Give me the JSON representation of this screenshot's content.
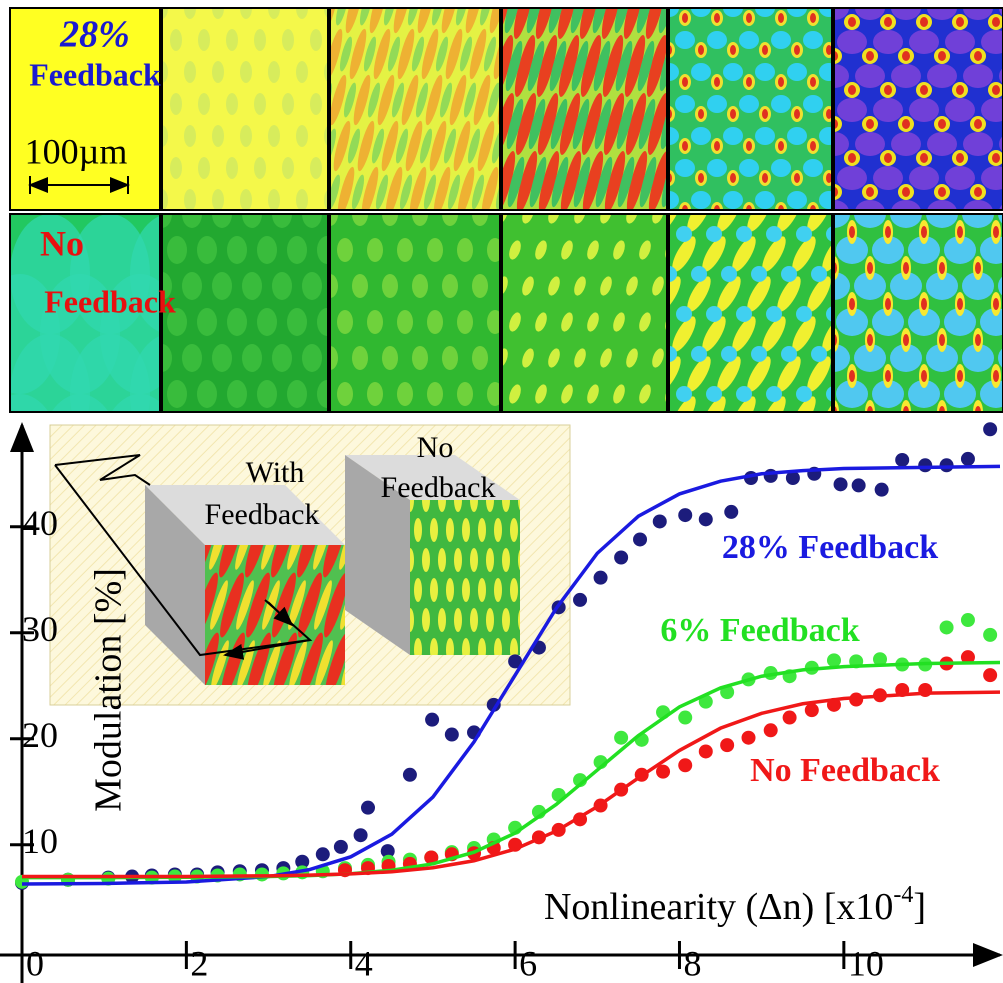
{
  "image_rows": [
    {
      "label": [
        "28%",
        "Feedback"
      ],
      "color": "#1a1ad0"
    },
    {
      "label": [
        "No",
        "Feedback"
      ],
      "color": "#e81010"
    }
  ],
  "scale_bar": "100µm",
  "inset": {
    "cubes": [
      [
        "With",
        "Feedback"
      ],
      [
        "No",
        "Feedback"
      ]
    ]
  },
  "chart_data": {
    "type": "scatter",
    "ylabel": "Modulation [%]",
    "xlabel": [
      "Nonlinearity (Δn) [x10",
      "-4",
      "]"
    ],
    "xlim": [
      0,
      11.9
    ],
    "ylim": [
      -0.4,
      49.6
    ],
    "xticks": [
      0,
      2,
      4,
      6,
      8,
      10
    ],
    "yticks": [
      10,
      20,
      30,
      40
    ],
    "series": [
      {
        "name": "28% Feedback",
        "color": "#1a1ae0",
        "point_color": "#1c1c7c",
        "x": [
          0,
          0.56,
          1.05,
          1.34,
          1.58,
          1.86,
          2.13,
          2.38,
          2.65,
          2.92,
          3.18,
          3.41,
          3.66,
          3.88,
          4.12,
          4.21,
          4.45,
          4.72,
          4.99,
          5.23,
          5.5,
          5.74,
          6.0,
          6.29,
          6.53,
          6.79,
          7.04,
          7.29,
          7.52,
          7.76,
          8.07,
          8.32,
          8.63,
          8.87,
          9.11,
          9.38,
          9.64,
          9.96,
          10.18,
          10.46,
          10.71,
          10.99,
          11.25,
          11.51,
          11.78
        ],
        "values": [
          6.4,
          6.7,
          6.9,
          7.0,
          7.1,
          7.2,
          7.2,
          7.4,
          7.5,
          7.6,
          7.8,
          8.4,
          9.1,
          9.8,
          10.9,
          13.5,
          9.4,
          16.6,
          21.8,
          20.4,
          20.6,
          23.2,
          27.3,
          28.6,
          32.4,
          33.1,
          35.2,
          37.1,
          38.8,
          40.5,
          41.1,
          40.7,
          41.4,
          44.6,
          44.8,
          44.6,
          45.0,
          44.0,
          43.9,
          43.5,
          46.3,
          45.8,
          45.8,
          46.4,
          49.2
        ],
        "fit": {
          "x": [
            0,
            1,
            2,
            3,
            3.5,
            4,
            4.5,
            5,
            5.5,
            6,
            6.5,
            7,
            7.5,
            8,
            8.5,
            9,
            9.5,
            10,
            11,
            11.9
          ],
          "values": [
            6.3,
            6.35,
            6.49,
            7.0,
            7.66,
            8.86,
            11.0,
            14.5,
            19.7,
            26.0,
            32.3,
            37.5,
            41.0,
            43.1,
            44.3,
            45.0,
            45.3,
            45.5,
            45.6,
            45.7
          ]
        }
      },
      {
        "name": "6% Feedback",
        "color": "#22e022",
        "point_color": "#3ee83e",
        "x": [
          0,
          0.56,
          1.05,
          1.58,
          1.86,
          2.13,
          2.38,
          2.65,
          2.92,
          3.18,
          3.41,
          3.66,
          3.93,
          4.21,
          4.46,
          4.72,
          4.98,
          5.23,
          5.5,
          5.74,
          6.0,
          6.29,
          6.53,
          6.79,
          7.04,
          7.29,
          7.54,
          7.8,
          8.07,
          8.32,
          8.58,
          8.84,
          9.11,
          9.34,
          9.61,
          9.88,
          10.15,
          10.44,
          10.71,
          10.99,
          11.25,
          11.51,
          11.78
        ],
        "values": [
          6.5,
          6.7,
          6.8,
          6.9,
          7.0,
          7.0,
          7.1,
          7.2,
          7.2,
          7.3,
          7.4,
          7.5,
          7.8,
          8.1,
          8.4,
          8.6,
          8.8,
          9.3,
          9.7,
          10.5,
          11.6,
          13.1,
          14.7,
          16.1,
          17.8,
          20.1,
          19.9,
          22.5,
          22.0,
          23.5,
          24.4,
          25.6,
          26.2,
          25.9,
          26.7,
          27.4,
          27.3,
          27.5,
          27.0,
          27.0,
          30.5,
          31.2,
          29.8
        ],
        "fit": {
          "x": [
            0,
            1,
            2,
            3,
            3.5,
            4,
            4.5,
            5,
            5.5,
            6,
            6.5,
            7,
            7.5,
            8,
            8.5,
            9,
            9.5,
            10,
            11,
            11.9
          ],
          "values": [
            6.9,
            6.9,
            6.93,
            7.0,
            7.09,
            7.26,
            7.6,
            8.2,
            9.3,
            11.1,
            13.8,
            17.05,
            20.3,
            23.0,
            24.8,
            25.9,
            26.5,
            26.8,
            27.1,
            27.2
          ]
        }
      },
      {
        "name": "No Feedback",
        "color": "#f01818",
        "point_color": "#f01818",
        "x": [
          3.93,
          4.21,
          4.46,
          4.72,
          4.98,
          5.23,
          5.5,
          5.74,
          6.0,
          6.29,
          6.53,
          6.79,
          7.04,
          7.29,
          7.54,
          7.8,
          8.07,
          8.32,
          8.58,
          8.84,
          9.11,
          9.34,
          9.61,
          9.88,
          10.15,
          10.44,
          10.71,
          10.99,
          11.25,
          11.51,
          11.78
        ],
        "values": [
          7.6,
          7.8,
          8.0,
          8.2,
          8.8,
          9.1,
          9.2,
          9.7,
          10.0,
          10.7,
          11.4,
          12.4,
          13.7,
          15.2,
          16.6,
          16.9,
          17.5,
          18.8,
          19.4,
          20.1,
          20.8,
          22.0,
          22.7,
          23.2,
          23.7,
          24.1,
          24.6,
          24.6,
          27.1,
          27.7,
          26.0
        ],
        "fit": {
          "x": [
            0,
            1,
            2,
            3,
            3.5,
            4,
            4.5,
            5,
            5.5,
            6,
            6.5,
            7,
            7.5,
            8,
            8.5,
            9,
            9.5,
            10,
            11,
            11.9
          ],
          "values": [
            7.0,
            7.0,
            7.01,
            7.07,
            7.13,
            7.25,
            7.45,
            7.83,
            8.49,
            9.59,
            11.29,
            13.6,
            16.3,
            18.9,
            21.0,
            22.4,
            23.3,
            23.8,
            24.3,
            24.4
          ]
        }
      }
    ]
  }
}
